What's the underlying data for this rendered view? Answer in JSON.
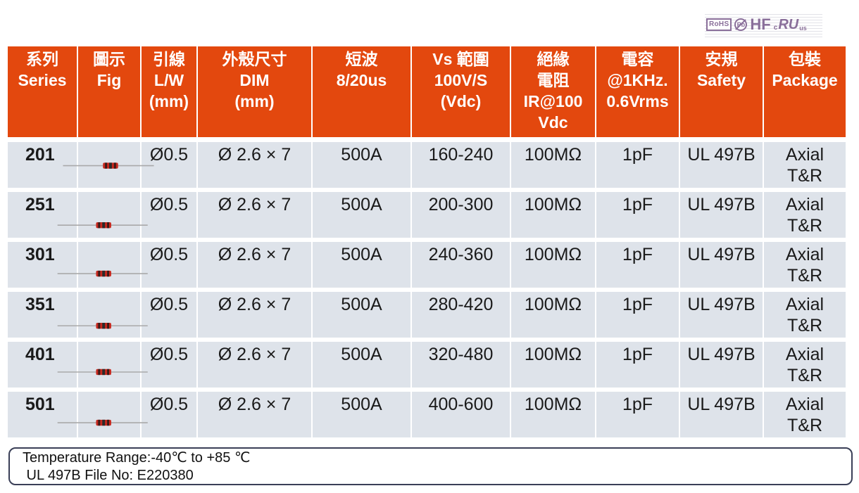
{
  "certifications": {
    "rohs": "RoHS",
    "pb": "Pb",
    "hf": "HF",
    "ul_c": "c",
    "ul_mark": "RU",
    "ul_us": "us"
  },
  "table": {
    "headers": [
      "系列\nSeries",
      "圖示\nFig",
      "引線\nL/W\n(mm)",
      "外殼尺寸\nDIM\n(mm)",
      "短波\n8/20us",
      "Vs 範圍\n100V/S\n(Vdc)",
      "絕緣\n電阻\nIR@100\nVdc",
      "電容\n@1KHz.\n0.6Vrms",
      "安規\nSafety",
      "包裝\nPackage"
    ],
    "rows": [
      {
        "series": "201",
        "lw": "Ø0.5",
        "dim": "Ø 2.6 × 7",
        "surge": "500A",
        "vs": "160-240",
        "ir": "100MΩ",
        "cap": "1pF",
        "safety": "UL 497B",
        "package": "Axial\nT&R"
      },
      {
        "series": "251",
        "lw": "Ø0.5",
        "dim": "Ø 2.6 × 7",
        "surge": "500A",
        "vs": "200-300",
        "ir": "100MΩ",
        "cap": "1pF",
        "safety": "UL 497B",
        "package": "Axial\nT&R"
      },
      {
        "series": "301",
        "lw": "Ø0.5",
        "dim": "Ø 2.6 × 7",
        "surge": "500A",
        "vs": "240-360",
        "ir": "100MΩ",
        "cap": "1pF",
        "safety": "UL 497B",
        "package": "Axial\nT&R"
      },
      {
        "series": "351",
        "lw": "Ø0.5",
        "dim": "Ø 2.6 × 7",
        "surge": "500A",
        "vs": "280-420",
        "ir": "100MΩ",
        "cap": "1pF",
        "safety": "UL 497B",
        "package": "Axial\nT&R"
      },
      {
        "series": "401",
        "lw": "Ø0.5",
        "dim": "Ø 2.6 × 7",
        "surge": "500A",
        "vs": "320-480",
        "ir": "100MΩ",
        "cap": "1pF",
        "safety": "UL 497B",
        "package": "Axial\nT&R"
      },
      {
        "series": "501",
        "lw": "Ø0.5",
        "dim": "Ø 2.6 × 7",
        "surge": "500A",
        "vs": "400-600",
        "ir": "100MΩ",
        "cap": "1pF",
        "safety": "UL 497B",
        "package": "Axial\nT&R"
      }
    ]
  },
  "notes": {
    "temperature": "Temperature Range:-40℃ to +85 ℃",
    "file_no": " UL 497B File No: E220380"
  },
  "colors": {
    "header_bg": "#e3480e",
    "row_bg": "#dee3ea",
    "component_body": "#c8281e"
  }
}
